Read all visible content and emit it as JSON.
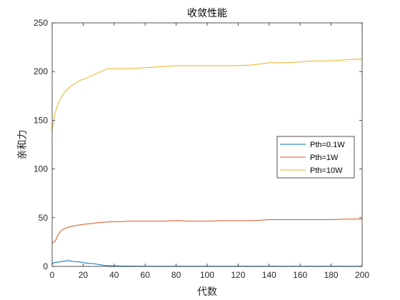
{
  "chart_data": {
    "type": "line",
    "title": "收敛性能",
    "xlabel": "代数",
    "ylabel": "亲和力",
    "xlim": [
      0,
      200
    ],
    "ylim": [
      0,
      250
    ],
    "xticks": [
      0,
      20,
      40,
      60,
      80,
      100,
      120,
      140,
      160,
      180,
      200
    ],
    "yticks": [
      0,
      50,
      100,
      150,
      200,
      250
    ],
    "grid": false,
    "legend_position": "right",
    "series": [
      {
        "name": "Pth=0.1W",
        "color": "#0072BD",
        "x": [
          0,
          2,
          4,
          6,
          8,
          10,
          12,
          14,
          16,
          18,
          20,
          22,
          24,
          26,
          28,
          30,
          32,
          34,
          36,
          38,
          40,
          50,
          60,
          80,
          100,
          120,
          140,
          160,
          180,
          200
        ],
        "y": [
          3,
          4,
          4.5,
          5,
          5.5,
          6,
          5.5,
          5,
          5,
          4.5,
          4,
          3.5,
          3,
          3,
          2.5,
          2,
          1.5,
          1,
          0.8,
          0.6,
          0.5,
          0.3,
          0.2,
          0.2,
          0.2,
          0.2,
          0.2,
          0.2,
          0.2,
          0.2
        ]
      },
      {
        "name": "Pth=1W",
        "color": "#D95319",
        "x": [
          0,
          2,
          4,
          6,
          8,
          10,
          12,
          15,
          20,
          25,
          30,
          35,
          40,
          45,
          50,
          60,
          70,
          80,
          90,
          100,
          110,
          120,
          130,
          140,
          150,
          160,
          170,
          180,
          190,
          200
        ],
        "y": [
          24,
          26,
          33,
          37,
          39,
          40,
          41,
          42,
          43,
          44,
          45,
          45.5,
          46,
          46,
          46.5,
          46.5,
          46.5,
          47,
          46.5,
          46.5,
          47,
          47,
          47,
          48,
          48,
          48,
          48,
          48,
          48.5,
          48.5
        ]
      },
      {
        "name": "Pth=10W",
        "color": "#EDB120",
        "x": [
          0,
          1,
          2,
          3,
          4,
          6,
          8,
          10,
          12,
          14,
          16,
          18,
          20,
          23,
          26,
          30,
          33,
          36,
          40,
          50,
          60,
          70,
          80,
          90,
          100,
          110,
          120,
          130,
          140,
          150,
          160,
          170,
          180,
          190,
          200
        ],
        "y": [
          140,
          150,
          158,
          163,
          168,
          174,
          179,
          182,
          185,
          187,
          189,
          191,
          192,
          194,
          196,
          199,
          201,
          203,
          203,
          203,
          204,
          205,
          206,
          206,
          206,
          206,
          206,
          207,
          209,
          209,
          210,
          211,
          211,
          212,
          213
        ]
      }
    ]
  }
}
